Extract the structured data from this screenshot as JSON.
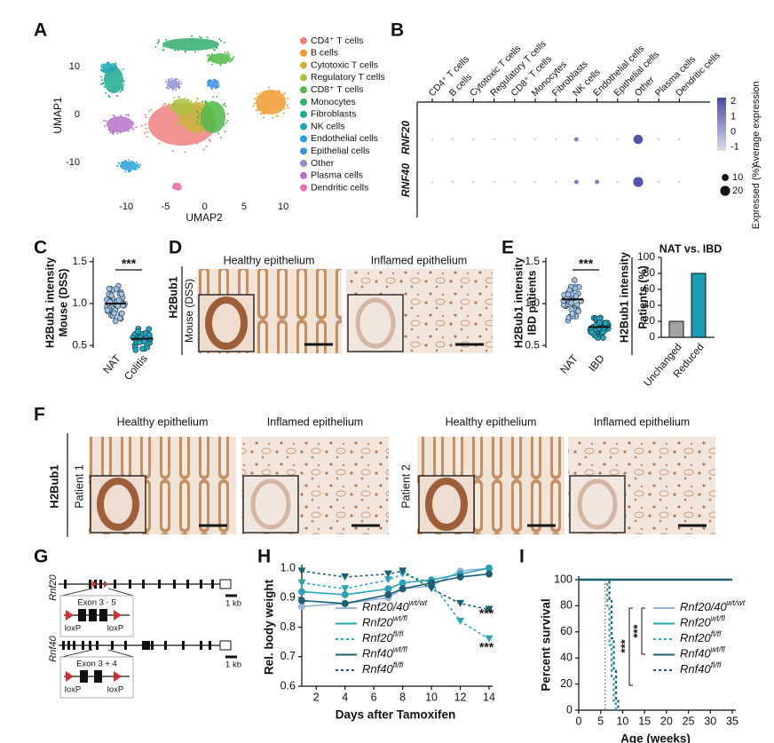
{
  "panel_labels": [
    "A",
    "B",
    "C",
    "D",
    "E",
    "F",
    "G",
    "H",
    "I"
  ],
  "umap": {
    "ylabel": "UMAP1",
    "xlabel": "UMAP2",
    "xlim": [
      -15,
      11
    ],
    "ylim": [
      -17,
      17
    ],
    "xticks": [
      -10,
      -5,
      0,
      5,
      10
    ],
    "yticks": [
      -10,
      0,
      10
    ],
    "legend": [
      {
        "name": "CD4⁺ T cells",
        "color": "#f07f7f"
      },
      {
        "name": "B cells",
        "color": "#ee9a2c"
      },
      {
        "name": "Cytotoxic T cells",
        "color": "#c9b43a"
      },
      {
        "name": "Regulatory T cells",
        "color": "#a9c23e"
      },
      {
        "name": "CD8⁺ T cells",
        "color": "#4db848"
      },
      {
        "name": "Monocytes",
        "color": "#2fae6c"
      },
      {
        "name": "Fibroblasts",
        "color": "#1ea88f"
      },
      {
        "name": "NK cells",
        "color": "#1fa8b4"
      },
      {
        "name": "Endothelial cells",
        "color": "#22a3d6"
      },
      {
        "name": "Epithelial cells",
        "color": "#3a8fe0"
      },
      {
        "name": "Other",
        "color": "#8f8fd2"
      },
      {
        "name": "Plasma cells",
        "color": "#b571c6"
      },
      {
        "name": "Dendritic cells",
        "color": "#e66fb2"
      }
    ]
  },
  "dotplot": {
    "columns": [
      "CD4⁺ T cells",
      "B cells",
      "Cytotoxic T cells",
      "Regulatory T cells",
      "CD8⁺ T cells",
      "Monocytes",
      "Fibroblasts",
      "NK cells",
      "Endothelial cells",
      "Epithelial cells",
      "Other",
      "Plasma cells",
      "Dendritic cells"
    ],
    "rows": [
      "RNF20",
      "RNF40"
    ],
    "pct": [
      [
        1,
        1,
        1,
        1,
        1,
        1,
        1,
        4,
        1,
        1,
        18,
        1,
        1
      ],
      [
        1,
        1,
        1,
        1,
        1,
        1,
        1,
        4,
        4,
        1,
        20,
        1,
        1
      ]
    ],
    "expr": [
      [
        -1,
        -1,
        -1,
        -1,
        -1,
        -1,
        -1,
        1,
        -1,
        -1,
        2,
        -1,
        -1
      ],
      [
        -1,
        -1,
        -1,
        -1,
        -1,
        -1,
        -1,
        1,
        1,
        -1,
        2,
        -1,
        -1
      ]
    ],
    "color_title": "Average expression",
    "clim": [
      -1.25,
      2.25
    ],
    "cticks": [
      2,
      1,
      0,
      -1
    ],
    "low_color": "#dcdce8",
    "high_color": "#4a4aa8",
    "size_title": "Expressed (%)",
    "sizes": [
      10,
      20
    ]
  },
  "panel_c": {
    "ylabel": [
      "H2Bub1 intensity",
      "Mouse (DSS)"
    ],
    "groups": [
      "NAT",
      "Colitis"
    ],
    "means": [
      1.0,
      0.58
    ],
    "ylim": [
      0.47,
      1.55
    ],
    "yticks": [
      0.5,
      {
        "value": 1.0,
        "label": "1.0"
      },
      1.5
    ],
    "sig": "***"
  },
  "panel_d": {
    "ylabel": "H2Bub1",
    "sublabel": "Mouse (DSS)",
    "titles": [
      "Healthy epithelium",
      "Inflamed epithelium"
    ]
  },
  "panel_e": {
    "ylabel": [
      "H2Bub1 intensity",
      "IBD patients"
    ],
    "groups": [
      "NAT",
      "IBD"
    ],
    "means": [
      1.05,
      0.72
    ],
    "ylim": [
      0.47,
      1.55
    ],
    "yticks": [
      0.5,
      {
        "value": 1.0,
        "label": "1.0"
      },
      1.5
    ],
    "sig": "***"
  },
  "panel_e_bar": {
    "type": "bar",
    "title": "NAT vs. IBD",
    "ylabel": [
      "H2Bub1 intensity",
      "Patients (%)"
    ],
    "categories": [
      "Unchanged",
      "Reduced"
    ],
    "values": [
      20,
      80
    ],
    "colors": [
      "#a3a3a3",
      "#1b9bb6"
    ],
    "ylim": [
      0,
      100
    ],
    "yticks": [
      0,
      20,
      40,
      60,
      80,
      100
    ]
  },
  "panel_f": {
    "ylabel": "H2Bub1",
    "patients": [
      "Patient 1",
      "Patient 2"
    ],
    "titles": [
      "Healthy epithelium",
      "Inflamed epithelium",
      "Healthy epithelium",
      "Inflamed epithelium"
    ]
  },
  "panel_g": {
    "genes": [
      {
        "name": "Rnf20",
        "exons": "Exon 3 - 5",
        "loxp": [
          "loxP",
          "loxP"
        ],
        "scale": "1 kb"
      },
      {
        "name": "Rnf40",
        "exons": "Exon 3 + 4",
        "loxp": [
          "loxP",
          "loxP"
        ],
        "scale": "1 kb"
      }
    ]
  },
  "chart_data": [
    {
      "type": "line",
      "xlabel": "Days after Tamoxifen",
      "ylabel": "Rel. body weight",
      "x": [
        1,
        4,
        7,
        8,
        10,
        12,
        14
      ],
      "xlim": [
        1,
        14
      ],
      "xticks": [
        2,
        4,
        6,
        8,
        10,
        12,
        14
      ],
      "ylim": [
        0.6,
        1.0
      ],
      "yticks": [
        0.6,
        0.7,
        0.8,
        0.9,
        {
          "value": 1.0,
          "label": "1.0"
        }
      ],
      "series": [
        {
          "name": "Rnf20/40",
          "genotype": "wt/wt",
          "color": "#93b3da",
          "dashed": false,
          "marker": "circle",
          "values": [
            0.87,
            0.88,
            0.9,
            0.93,
            0.94,
            0.99,
            1.0
          ]
        },
        {
          "name": "Rnf20",
          "genotype": "wt/fl",
          "color": "#2aa3b4",
          "dashed": false,
          "marker": "circle",
          "values": [
            0.92,
            0.91,
            0.93,
            0.95,
            0.96,
            0.98,
            1.0
          ]
        },
        {
          "name": "Rnf20",
          "genotype": "fl/fl",
          "color": "#2aa3b4",
          "dashed": true,
          "marker": "triangle",
          "values": [
            0.95,
            0.93,
            0.96,
            0.98,
            0.95,
            0.82,
            0.76
          ]
        },
        {
          "name": "Rnf40",
          "genotype": "wt/fl",
          "color": "#1b5f70",
          "dashed": false,
          "marker": "circle",
          "values": [
            0.89,
            0.88,
            0.91,
            0.93,
            0.95,
            0.97,
            0.98
          ]
        },
        {
          "name": "Rnf40",
          "genotype": "fl/fl",
          "color": "#1b5f70",
          "dashed": true,
          "marker": "triangle",
          "values": [
            0.99,
            0.97,
            0.98,
            0.99,
            0.93,
            0.88,
            0.86
          ]
        }
      ],
      "annotations": [
        "***",
        "***"
      ]
    },
    {
      "type": "step",
      "xlabel": "Age (weeks)",
      "ylabel": "Percent survival",
      "xlim": [
        0,
        35
      ],
      "xticks": [
        0,
        5,
        10,
        15,
        20,
        25,
        30,
        35
      ],
      "ylim": [
        0,
        100
      ],
      "yticks": [
        0,
        20,
        40,
        60,
        80,
        100
      ],
      "vline": 6,
      "vline_color": "#e07a64",
      "series": [
        {
          "name": "Rnf20/40",
          "genotype": "wt/wt",
          "color": "#93b3da",
          "dashed": false,
          "x": [
            0,
            35
          ],
          "values": [
            100,
            100
          ]
        },
        {
          "name": "Rnf20",
          "genotype": "wt/fl",
          "color": "#2aa3b4",
          "dashed": false,
          "x": [
            0,
            35
          ],
          "values": [
            100,
            100
          ]
        },
        {
          "name": "Rnf20",
          "genotype": "fl/fl",
          "color": "#2aa3b4",
          "dashed": true,
          "x": [
            0,
            6.5,
            7,
            7.5,
            8,
            8.5
          ],
          "values": [
            100,
            80,
            50,
            25,
            5,
            0
          ]
        },
        {
          "name": "Rnf40",
          "genotype": "wt/fl",
          "color": "#1b5f70",
          "dashed": false,
          "x": [
            0,
            35
          ],
          "values": [
            100,
            100
          ]
        },
        {
          "name": "Rnf40",
          "genotype": "fl/fl",
          "color": "#1b5f70",
          "dashed": true,
          "x": [
            0,
            7,
            7.5,
            8,
            8.5,
            9
          ],
          "values": [
            100,
            85,
            55,
            30,
            8,
            0
          ]
        }
      ],
      "annotations": [
        "***",
        "***"
      ]
    }
  ]
}
